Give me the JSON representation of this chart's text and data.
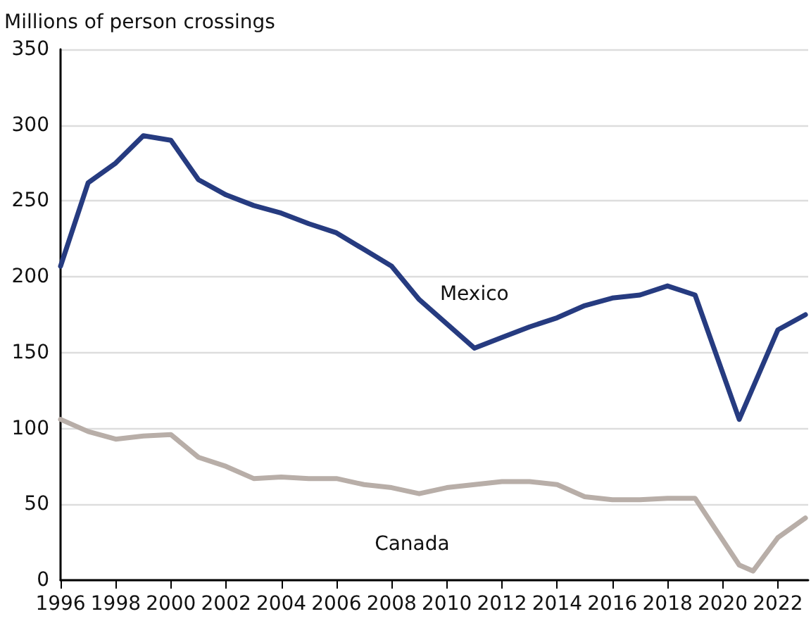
{
  "chart_data": {
    "type": "line",
    "ylabel": "Millions of person crossings",
    "xlim": [
      1996,
      2023.1
    ],
    "xticks": [
      1996,
      1998,
      2000,
      2002,
      2004,
      2006,
      2008,
      2010,
      2012,
      2014,
      2016,
      2018,
      2020,
      2022
    ],
    "ylim": [
      0,
      350
    ],
    "yticks": [
      0,
      50,
      100,
      150,
      200,
      250,
      300,
      350
    ],
    "grid": "y",
    "legend": false,
    "marker": "none",
    "line_style": "solid",
    "series": [
      {
        "name": "Mexico",
        "color": "#263b80",
        "x": [
          1996,
          1997,
          1998,
          1999,
          2000,
          2001,
          2002,
          2003,
          2004,
          2005,
          2006,
          2007,
          2008,
          2009,
          2010,
          2011,
          2012,
          2013,
          2014,
          2015,
          2016,
          2017,
          2018,
          2019,
          2020.6,
          2022,
          2023
        ],
        "values": [
          207,
          262,
          275,
          293,
          290,
          264,
          254,
          247,
          242,
          235,
          229,
          218,
          207,
          185,
          169,
          153,
          160,
          167,
          173,
          181,
          186,
          188,
          194,
          188,
          106,
          165,
          175
        ]
      },
      {
        "name": "Canada",
        "color": "#b8aea8",
        "x": [
          1996,
          1997,
          1998,
          1999,
          2000,
          2001,
          2002,
          2003,
          2004,
          2005,
          2006,
          2007,
          2008,
          2009,
          2010,
          2011,
          2012,
          2013,
          2014,
          2015,
          2016,
          2017,
          2018,
          2019,
          2020.6,
          2021.1,
          2022,
          2023
        ],
        "values": [
          106,
          98,
          93,
          95,
          96,
          81,
          75,
          67,
          68,
          67,
          67,
          63,
          61,
          57,
          61,
          63,
          65,
          65,
          63,
          55,
          53,
          53,
          54,
          54,
          10,
          6,
          28,
          41
        ]
      }
    ]
  }
}
